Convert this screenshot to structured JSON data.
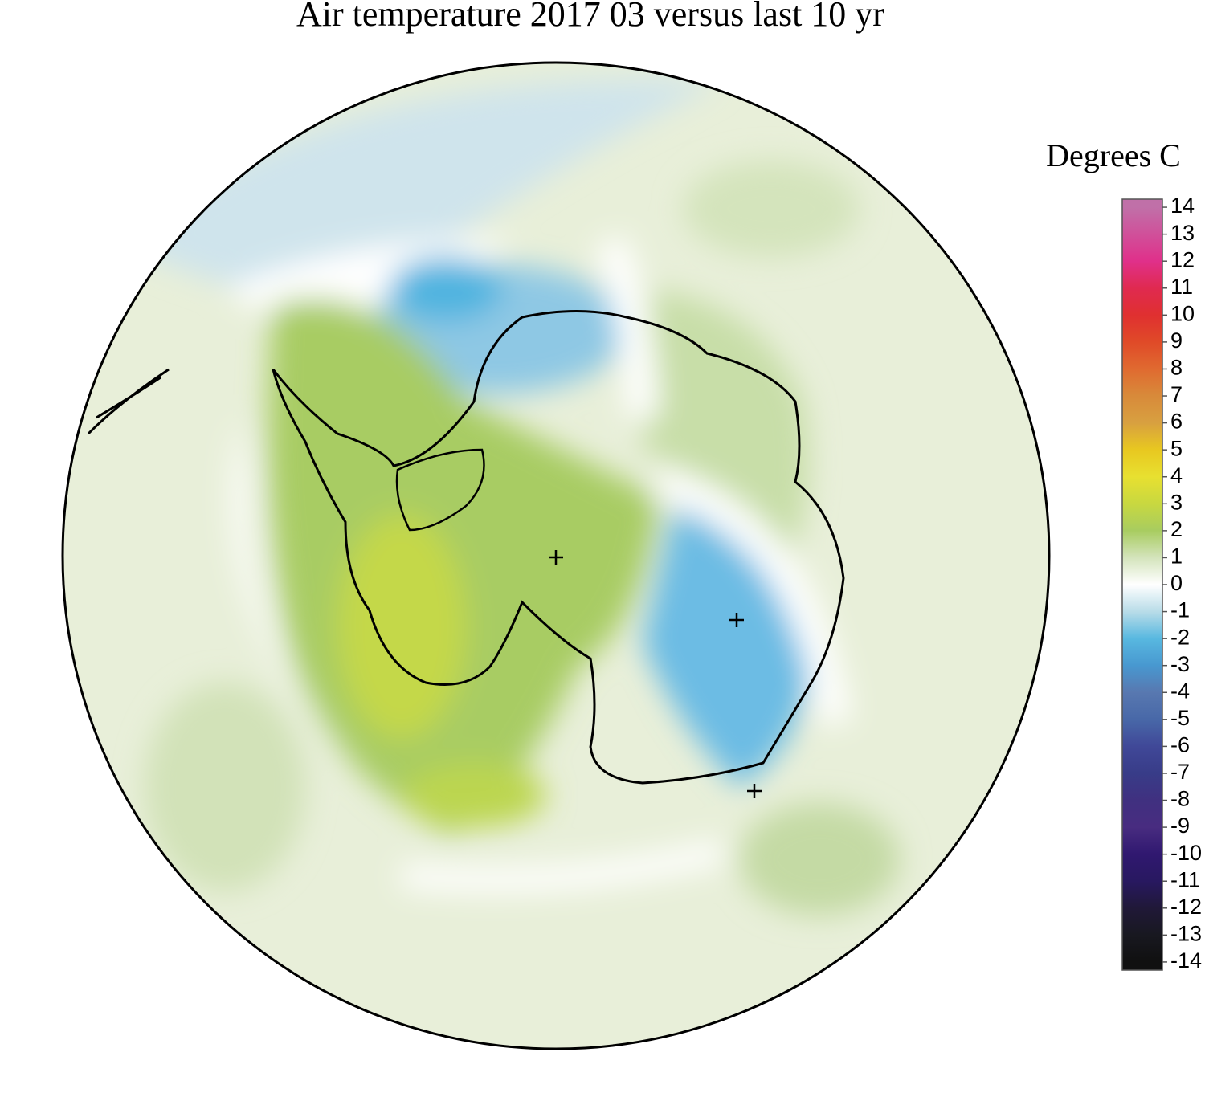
{
  "title": "Air temperature 2017 03 versus last 10 yr",
  "colorbar": {
    "label": "Degrees C",
    "lim": [
      -14.3,
      14.3
    ],
    "ticks": [
      14,
      13,
      12,
      11,
      10,
      9,
      8,
      7,
      6,
      5,
      4,
      3,
      2,
      1,
      0,
      -1,
      -2,
      -3,
      -4,
      -5,
      -6,
      -7,
      -8,
      -9,
      -10,
      -11,
      -12,
      -13,
      -14
    ],
    "colors": [
      "#c070a8",
      "#d0509a",
      "#e0308a",
      "#e02a50",
      "#e03030",
      "#e04a28",
      "#e06a30",
      "#d88a3a",
      "#d8a040",
      "#e8c820",
      "#e8e030",
      "#c8d840",
      "#a8cc60",
      "#d4e4bc",
      "#ffffff",
      "#b8dce8",
      "#58b8e0",
      "#4898d0",
      "#5878b0",
      "#4868a8",
      "#404898",
      "#383c88",
      "#403080",
      "#482c80",
      "#301870",
      "#281860",
      "#201838",
      "#181820",
      "#101010"
    ]
  }
}
